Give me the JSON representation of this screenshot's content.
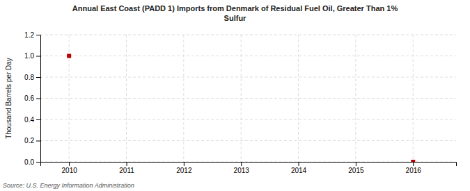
{
  "chart_data": {
    "type": "scatter",
    "title": "Annual East Coast (PADD 1) Imports from Denmark of Residual Fuel Oil, Greater Than 1%\nSulfur",
    "y_label": "Thousand Barrels per Day",
    "source": "Source: U.S. Energy Information Administration",
    "x": [
      2010,
      2016
    ],
    "values": [
      1.0,
      0.0
    ],
    "color": "#bb0000",
    "marker": "square",
    "xlim": [
      2009.5,
      2016.75
    ],
    "ylim": [
      0.0,
      1.2
    ],
    "xticks": [
      2010,
      2011,
      2012,
      2013,
      2014,
      2015,
      2016
    ],
    "yticks": [
      {
        "value": 0.0,
        "label": "0.0"
      },
      0.2,
      0.4,
      0.6,
      0.8,
      {
        "value": 1.0,
        "label": "1.0"
      },
      1.2
    ],
    "grid": true
  }
}
